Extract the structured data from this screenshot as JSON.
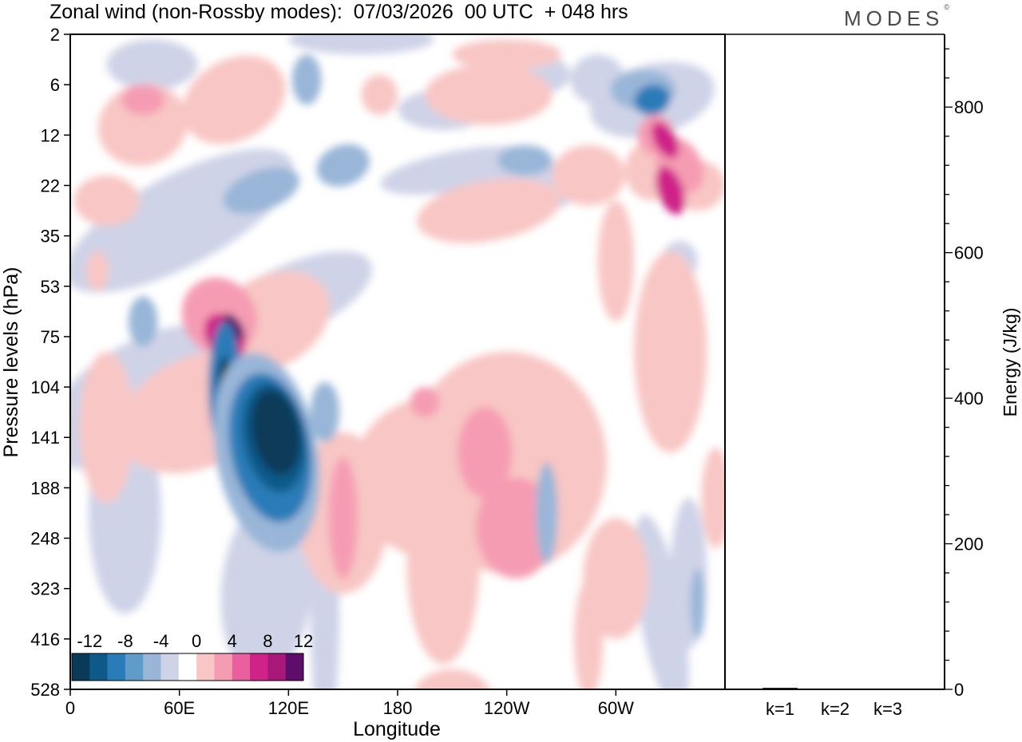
{
  "title": "Zonal wind (non-Rossby modes):  07/03/2026  00 UTC  + 048 hrs",
  "brand": "MODES",
  "brand_mark": "©",
  "chart_data": [
    {
      "type": "heatmap",
      "title": "Zonal wind (non-Rossby modes):  07/03/2026  00 UTC  + 048 hrs",
      "xlabel": "Longitude",
      "ylabel": "Pressure levels (hPa)",
      "x_ticks": [
        "0",
        "60E",
        "120E",
        "180",
        "120W",
        "60W"
      ],
      "x_tick_values": [
        0,
        60,
        120,
        180,
        240,
        300
      ],
      "xlim": [
        0,
        360
      ],
      "y_ticks": [
        "2",
        "6",
        "12",
        "22",
        "35",
        "53",
        "75",
        "104",
        "141",
        "188",
        "248",
        "323",
        "416",
        "528"
      ],
      "colorbar": {
        "labels": [
          "-12",
          "-8",
          "-4",
          "0",
          "4",
          "8",
          "12"
        ],
        "levels": [
          -14,
          -12,
          -10,
          -8,
          -6,
          -4,
          -2,
          2,
          4,
          6,
          8,
          10,
          12,
          14
        ],
        "colors": [
          "#0b3a59",
          "#0d5a8a",
          "#2a7cb8",
          "#5f9cca",
          "#99b6d8",
          "#cfd3e7",
          "#ffffff",
          "#f8c6c4",
          "#f59cb3",
          "#ea5f9e",
          "#cf2389",
          "#a81879",
          "#5e0d6a"
        ]
      },
      "features": [
        {
          "name": "strong easterly jet core",
          "lon": 112,
          "level_hPa": 141,
          "value": -16
        },
        {
          "name": "easterly core west",
          "lon": 85,
          "level_hPa": 104,
          "value": -13
        },
        {
          "name": "westerly maximum",
          "lon": 90,
          "level_hPa": 60,
          "value": 11
        },
        {
          "name": "upper westerly",
          "lon": 328,
          "level_hPa": 12,
          "value": 10
        },
        {
          "name": "upper westerly",
          "lon": 335,
          "level_hPa": 20,
          "value": 9
        },
        {
          "name": "upper easterly",
          "lon": 320,
          "level_hPa": 7,
          "value": -7
        },
        {
          "name": "easterly band",
          "lon": 105,
          "level_hPa": 24,
          "value": -7
        },
        {
          "name": "mid-level westerly area",
          "lon": 240,
          "level_hPa": 170,
          "value": 6
        }
      ]
    },
    {
      "type": "bar",
      "ylabel": "Energy (J/kg)",
      "categories": [
        "k=1",
        "k=2",
        "k=3"
      ],
      "values": [
        2,
        1,
        1
      ],
      "ylim": [
        0,
        900
      ],
      "y_ticks": [
        0,
        200,
        400,
        600,
        800
      ]
    }
  ]
}
